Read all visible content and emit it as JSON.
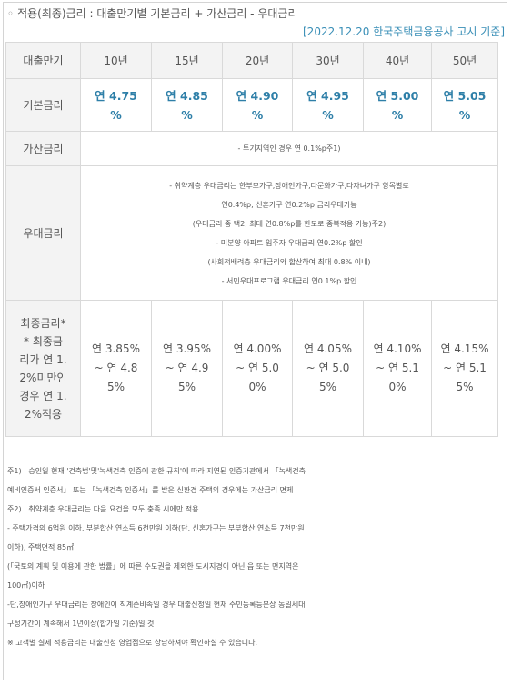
{
  "header": {
    "title": "적용(최종)금리 : 대출만기별 기본금리 + 가산금리 - 우대금리",
    "source": "[2022.12.20 한국주택금융공사 고시 기준]"
  },
  "table": {
    "corner_label": "대출만기",
    "terms": [
      "10년",
      "15년",
      "20년",
      "30년",
      "40년",
      "50년"
    ],
    "base_label": "기본금리",
    "base_rates": [
      [
        "연 4.75",
        "%"
      ],
      [
        "연 4.85",
        "%"
      ],
      [
        "연 4.90",
        "%"
      ],
      [
        "연 4.95",
        "%"
      ],
      [
        "연 5.00",
        "%"
      ],
      [
        "연 5.05",
        "%"
      ]
    ],
    "add_label": "가산금리",
    "add_text": "- 투기지역인 경우 연 0.1%p주1)",
    "pref_label": "우대금리",
    "pref_lines": [
      "- 취약계층 우대금리는 한부모가구,장애인가구,다문화가구,다자녀가구 항목별로",
      "연0.4%p, 신혼가구 연0.2%p 금리우대가능",
      "(우대금리 중 택2, 최대 연0.8%p를 한도로 중복적용 가능)주2)",
      "- 미분양 아파트 입주자 우대금리 연0.2%p 할인",
      "(사회적배려층 우대금리와 합산하여 최대 0.8% 이내)",
      "- 서민우대프로그램 우대금리 연0.1%p 할인"
    ],
    "final_label_lines": [
      "최종금리*",
      "* 최종금",
      "리가 연 1.",
      "2%미만인",
      "경우 연 1.",
      "2%적용"
    ],
    "final_rates": [
      [
        "연 3.85%",
        "~ 연 4.8",
        "5%"
      ],
      [
        "연 3.95%",
        "~ 연 4.9",
        "5%"
      ],
      [
        "연 4.00%",
        "~ 연 5.0",
        "0%"
      ],
      [
        "연 4.05%",
        "~ 연 5.0",
        "5%"
      ],
      [
        "연 4.10%",
        "~ 연 5.1",
        "0%"
      ],
      [
        "연 4.15%",
        "~ 연 5.1",
        "5%"
      ]
    ]
  },
  "notes": {
    "note1_mark": "주1)",
    "note1_lines": [
      ": 승인일 현재 '건축법'및'녹색건축 인증에 관한 규칙'에 따라 지연된 인증기관에서 「녹색건축",
      "예비인증서 인증서」 또는 「녹색건축 인증서」를 받은 신환경 주택의 경우에는 가산금리 면제"
    ],
    "note2_mark": "주2)",
    "note2_lines": [
      ": 취약계층 우대금리는 다음 요건을 모두 충족 시에만 적용",
      "- 주택가격의 6억원 이하, 부분합산 연소득 6천만원 이하(단, 신혼가구는 부부합산 연소득 7천만원",
      "이하), 주택면적 85㎡",
      "(「국토의 계획 및 이용에 관한 법률」에 따른 수도권을 제외한 도시지경이 아닌 읍 또는 면지역은",
      "100㎡)이하",
      "-단,장애인가구 우대금리는 장애인이 직계존비속일 경우 대출신청일 현재 주민등록등본상 동일세대",
      "구성기간이 계속해서 1년이상(합가일 기준)일 것"
    ],
    "footer": "※ 고객별 실제 적용금리는 대출신청 영업점으로 상담하셔야 확인하실 수 있습니다."
  },
  "colors": {
    "accent": "#2e7fa8",
    "source": "#3a8fb7",
    "header_bg": "#f3f3f3",
    "border": "#d9d9d9"
  }
}
